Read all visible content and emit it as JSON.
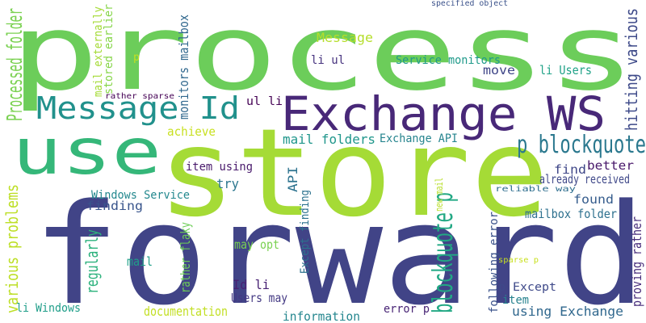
{
  "words": [
    {
      "text": "forward",
      "color": "#414487"
    },
    {
      "text": "store",
      "color": "#a5db36"
    },
    {
      "text": "process",
      "color": "#6ccd5a"
    },
    {
      "text": "use",
      "color": "#35b779"
    },
    {
      "text": "Exchange WS",
      "color": "#482878"
    },
    {
      "text": "Message Id",
      "color": "#21918c"
    },
    {
      "text": "p blockquote",
      "color": "#2a788e"
    },
    {
      "text": "blockquote p",
      "color": "#22a884"
    },
    {
      "text": "Processed folder",
      "color": "#7ad151"
    },
    {
      "text": "various problems",
      "color": "#bddf26"
    },
    {
      "text": "hitting various",
      "color": "#3e4a89"
    },
    {
      "text": "proving rather",
      "color": "#472d7b"
    },
    {
      "text": "mail externally",
      "color": "#a5db36"
    },
    {
      "text": "stored earlier",
      "color": "#86d549"
    },
    {
      "text": "monitors mailbox",
      "color": "#31688e"
    },
    {
      "text": "rather flaky",
      "color": "#6ece58"
    },
    {
      "text": "Except finding",
      "color": "#2c728e"
    },
    {
      "text": "following error",
      "color": "#3b528b"
    },
    {
      "text": "regularly",
      "color": "#2db27d"
    },
    {
      "text": "li Windows",
      "color": "#1f9e89"
    },
    {
      "text": "Message",
      "color": "#b5de2b"
    },
    {
      "text": "li ul",
      "color": "#46327e"
    },
    {
      "text": "Service monitors",
      "color": "#1f9a8a"
    },
    {
      "text": "move",
      "color": "#404688"
    },
    {
      "text": "li Users",
      "color": "#1fa287"
    },
    {
      "text": "ul li",
      "color": "#440154"
    },
    {
      "text": "achieve",
      "color": "#c8e020"
    },
    {
      "text": "mail folders",
      "color": "#1f968b"
    },
    {
      "text": "Exchange API",
      "color": "#25848e"
    },
    {
      "text": "find",
      "color": "#3f4788"
    },
    {
      "text": "better",
      "color": "#48186a"
    },
    {
      "text": "already received",
      "color": "#3f4889"
    },
    {
      "text": "item using",
      "color": "#48196b"
    },
    {
      "text": "API",
      "color": "#2c728e"
    },
    {
      "text": "try",
      "color": "#2a768e"
    },
    {
      "text": "Windows Service",
      "color": "#23888e"
    },
    {
      "text": "finding",
      "color": "#39558c"
    },
    {
      "text": "found",
      "color": "#365d8d"
    },
    {
      "text": "mailbox folder",
      "color": "#2d708e"
    },
    {
      "text": "reliable way",
      "color": "#2e6e8e"
    },
    {
      "text": "new mail",
      "color": "#b8de29"
    },
    {
      "text": "specified object",
      "color": "#3b528b"
    },
    {
      "text": "rather sparse",
      "color": "#440154"
    },
    {
      "text": "p",
      "color": "#c2df23"
    },
    {
      "text": "mail",
      "color": "#1f9f88"
    },
    {
      "text": "may opt",
      "color": "#7ad151"
    },
    {
      "text": "Id li",
      "color": "#482173"
    },
    {
      "text": "Users may",
      "color": "#443983"
    },
    {
      "text": "documentation",
      "color": "#c2df23"
    },
    {
      "text": "information",
      "color": "#24868e"
    },
    {
      "text": "error p",
      "color": "#482475"
    },
    {
      "text": "p Except",
      "color": "#3e4989"
    },
    {
      "text": "item",
      "color": "#26828e"
    },
    {
      "text": "using Exchange",
      "color": "#31688e"
    },
    {
      "text": "sparse p",
      "color": "#c8e020"
    }
  ]
}
